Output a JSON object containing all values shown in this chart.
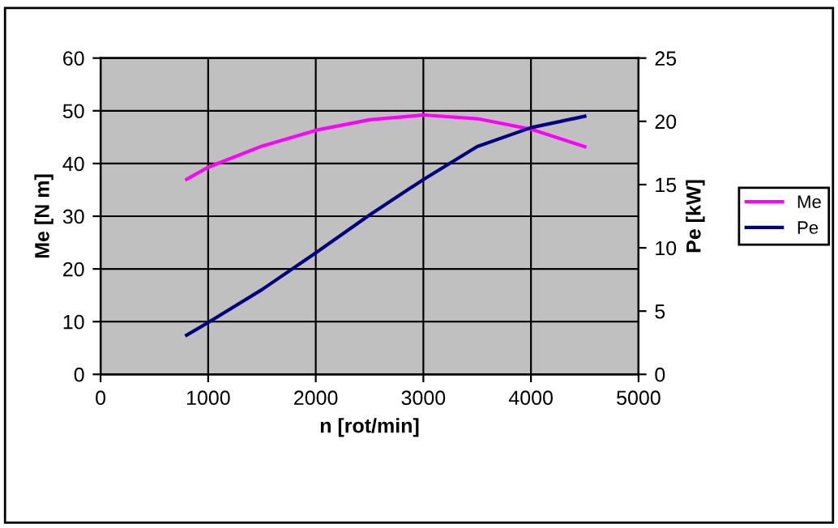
{
  "chart_data": {
    "type": "line",
    "xlabel": "n [rot/min]",
    "ylabel": "Me [N m]",
    "y2label": "Pe [kW]",
    "x": [
      800,
      1000,
      1500,
      2000,
      2500,
      3000,
      3500,
      4000,
      4500
    ],
    "series": [
      {
        "name": "Me",
        "color": "#ff00ff",
        "values": [
          37,
          39.3,
          43.3,
          46.3,
          48.3,
          49.2,
          48.5,
          46.5,
          43.2
        ]
      },
      {
        "name": "Pe",
        "color": "#000080",
        "axis": "y2",
        "values": [
          3.1,
          4.1,
          6.7,
          9.6,
          12.6,
          15.4,
          18.0,
          19.5,
          20.4
        ]
      }
    ],
    "xlim": [
      0,
      5000
    ],
    "xticks": [
      0,
      1000,
      2000,
      3000,
      4000,
      5000
    ],
    "ylim": [
      0,
      60
    ],
    "yticks": [
      0,
      10,
      20,
      30,
      40,
      50,
      60
    ],
    "y2lim": [
      0,
      25
    ],
    "y2ticks": [
      0,
      5,
      10,
      15,
      20,
      25
    ],
    "grid": true,
    "legend": "right",
    "marker": "none",
    "line_style": "solid"
  }
}
